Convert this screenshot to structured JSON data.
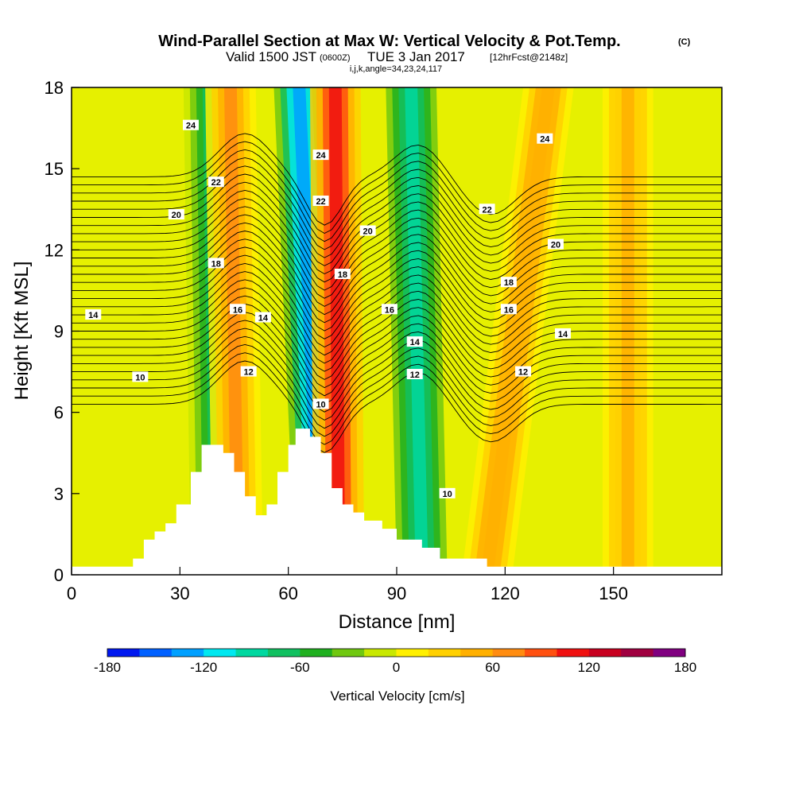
{
  "title": {
    "main": "Wind-Parallel Section at Max W: Vertical Velocity & Pot.Temp.",
    "copyright": "(C)",
    "valid_prefix": "Valid 1500 JST",
    "valid_utc": "(0600Z)",
    "valid_date": "TUE 3 Jan 2017",
    "forecast": "[12hrFcst@2148z]",
    "indices": "i,j,k,angle=34,23,24,117"
  },
  "chart_data": {
    "type": "heatmap",
    "xlabel": "Distance [nm]",
    "ylabel": "Height [Kft MSL]",
    "xlim": [
      0,
      180
    ],
    "ylim": [
      0,
      18
    ],
    "x_ticks": [
      0,
      30,
      60,
      90,
      120,
      150
    ],
    "y_ticks": [
      0,
      3,
      6,
      9,
      12,
      15,
      18
    ],
    "colorbar": {
      "label": "Vertical Velocity [cm/s]",
      "range": [
        -180,
        180
      ],
      "tick_values": [
        -180,
        -120,
        -60,
        0,
        60,
        120,
        180
      ],
      "colors": [
        "#0018f0",
        "#0060ff",
        "#00a0ff",
        "#00e8f0",
        "#00d8a0",
        "#10c060",
        "#20b020",
        "#70c810",
        "#c8e800",
        "#fff000",
        "#ffd000",
        "#ffb000",
        "#ff8c10",
        "#ff5010",
        "#f01010",
        "#c80020",
        "#a00040",
        "#800080"
      ]
    },
    "updraft_downdraft_bands": [
      {
        "x_base": 40,
        "x_top": 38,
        "w": -70
      },
      {
        "x_base": 46,
        "x_top": 44,
        "w": 60
      },
      {
        "x_base": 69,
        "x_top": 63,
        "w": -140
      },
      {
        "x_base": 74,
        "x_top": 73,
        "w": 110
      },
      {
        "x_base": 97,
        "x_top": 94,
        "w": -85
      },
      {
        "x_base": 115,
        "x_top": 132,
        "w": 55
      },
      {
        "x_base": 154,
        "x_top": 154,
        "w": 40
      }
    ],
    "theta_contour_labels": [
      {
        "text": "24",
        "x": 33,
        "y": 16.6
      },
      {
        "text": "22",
        "x": 40,
        "y": 14.5
      },
      {
        "text": "20",
        "x": 29,
        "y": 13.3
      },
      {
        "text": "18",
        "x": 40,
        "y": 11.5
      },
      {
        "text": "16",
        "x": 46,
        "y": 9.8
      },
      {
        "text": "14",
        "x": 6,
        "y": 9.6
      },
      {
        "text": "14",
        "x": 53,
        "y": 9.5
      },
      {
        "text": "12",
        "x": 49,
        "y": 7.5
      },
      {
        "text": "10",
        "x": 19,
        "y": 7.3
      },
      {
        "text": "24",
        "x": 69,
        "y": 15.5
      },
      {
        "text": "22",
        "x": 69,
        "y": 13.8
      },
      {
        "text": "20",
        "x": 82,
        "y": 12.7
      },
      {
        "text": "18",
        "x": 75,
        "y": 11.1
      },
      {
        "text": "16",
        "x": 88,
        "y": 9.8
      },
      {
        "text": "14",
        "x": 95,
        "y": 8.6
      },
      {
        "text": "12",
        "x": 95,
        "y": 7.4
      },
      {
        "text": "10",
        "x": 69,
        "y": 6.3
      },
      {
        "text": "10",
        "x": 104,
        "y": 3.0
      },
      {
        "text": "24",
        "x": 131,
        "y": 16.1
      },
      {
        "text": "22",
        "x": 115,
        "y": 13.5
      },
      {
        "text": "20",
        "x": 134,
        "y": 12.2
      },
      {
        "text": "18",
        "x": 121,
        "y": 10.8
      },
      {
        "text": "16",
        "x": 121,
        "y": 9.8
      },
      {
        "text": "14",
        "x": 136,
        "y": 8.9
      },
      {
        "text": "12",
        "x": 125,
        "y": 7.5
      }
    ],
    "terrain": [
      [
        0,
        0.3
      ],
      [
        17,
        0.3
      ],
      [
        17,
        0.6
      ],
      [
        20,
        0.6
      ],
      [
        20,
        1.3
      ],
      [
        23,
        1.3
      ],
      [
        23,
        1.6
      ],
      [
        26,
        1.6
      ],
      [
        26,
        1.9
      ],
      [
        29,
        1.9
      ],
      [
        29,
        2.6
      ],
      [
        33,
        2.6
      ],
      [
        33,
        3.8
      ],
      [
        36,
        3.8
      ],
      [
        36,
        4.8
      ],
      [
        42,
        4.8
      ],
      [
        42,
        4.5
      ],
      [
        45,
        4.5
      ],
      [
        45,
        3.8
      ],
      [
        48,
        3.8
      ],
      [
        48,
        2.9
      ],
      [
        51,
        2.9
      ],
      [
        51,
        2.2
      ],
      [
        54,
        2.2
      ],
      [
        54,
        2.6
      ],
      [
        57,
        2.6
      ],
      [
        57,
        3.8
      ],
      [
        60,
        3.8
      ],
      [
        60,
        4.8
      ],
      [
        62,
        4.8
      ],
      [
        62,
        5.4
      ],
      [
        66,
        5.4
      ],
      [
        66,
        5.1
      ],
      [
        69,
        5.1
      ],
      [
        69,
        4.5
      ],
      [
        72,
        4.5
      ],
      [
        72,
        3.2
      ],
      [
        75,
        3.2
      ],
      [
        75,
        2.6
      ],
      [
        78,
        2.6
      ],
      [
        78,
        2.3
      ],
      [
        81,
        2.3
      ],
      [
        81,
        2.0
      ],
      [
        86,
        2.0
      ],
      [
        86,
        1.7
      ],
      [
        90,
        1.7
      ],
      [
        90,
        1.3
      ],
      [
        97,
        1.3
      ],
      [
        97,
        1.0
      ],
      [
        102,
        1.0
      ],
      [
        102,
        0.6
      ],
      [
        115,
        0.6
      ],
      [
        115,
        0.3
      ],
      [
        180,
        0.3
      ]
    ]
  }
}
